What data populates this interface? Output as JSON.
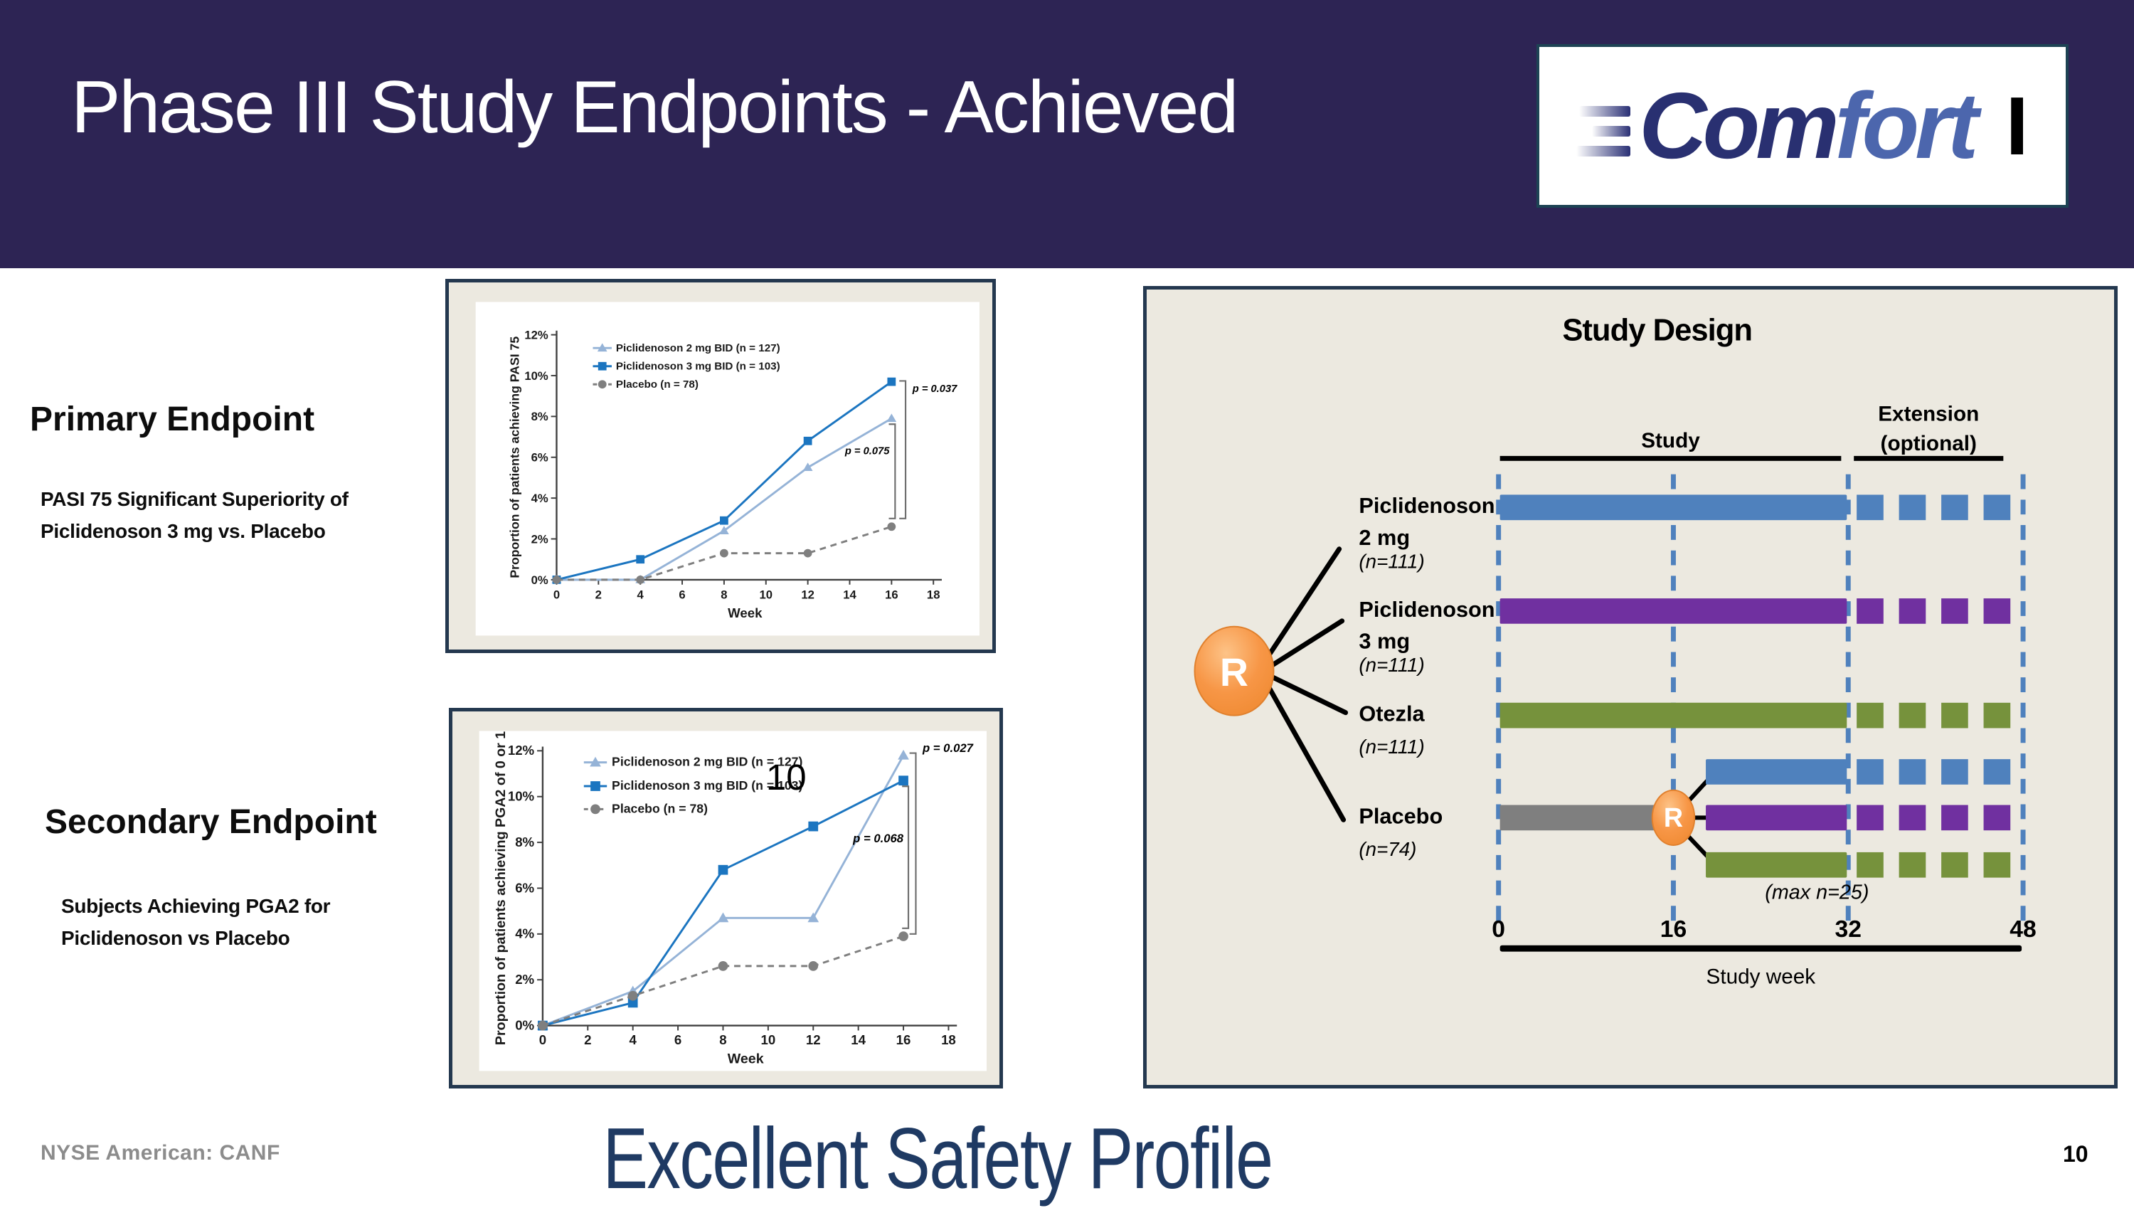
{
  "header": {
    "title": "Phase III Study Endpoints - Achieved",
    "logo": {
      "part1": "Com",
      "part2": "fort",
      "suffix": "I"
    },
    "bg_color": "#2d2454"
  },
  "sections": {
    "primary": {
      "heading": "Primary Endpoint",
      "body": "PASI 75 Significant Superiority of Piclidenoson 3 mg vs. Placebo"
    },
    "secondary": {
      "heading": "Secondary Endpoint",
      "body": "Subjects Achieving PGA2 for Piclidenoson vs Placebo"
    }
  },
  "footer": {
    "ticker": "NYSE American: CANF",
    "headline": "Excellent Safety Profile",
    "page_number": "10"
  },
  "chart_data": [
    {
      "type": "line",
      "title": "Primary Endpoint PASI 75",
      "xlabel": "Week",
      "ylabel": "Proportion of patients achieving PASI 75",
      "xlim": [
        0,
        18
      ],
      "ylim": [
        0,
        12
      ],
      "x_ticks": [
        0,
        2,
        4,
        6,
        8,
        10,
        12,
        14,
        16,
        18
      ],
      "y_ticks": [
        {
          "v": 0,
          "label": "0%"
        },
        {
          "v": 2,
          "label": "2%"
        },
        {
          "v": 4,
          "label": "4%"
        },
        {
          "v": 6,
          "label": "6%"
        },
        {
          "v": 8,
          "label": "8%"
        },
        {
          "v": 10,
          "label": "10%"
        },
        {
          "v": 12,
          "label": "12%"
        }
      ],
      "x": [
        0,
        4,
        8,
        12,
        16
      ],
      "series": [
        {
          "name": "Piclidenoson 2 mg BID (n = 127)",
          "values": [
            0,
            0,
            2.4,
            5.5,
            7.9
          ],
          "color": "#95b3d7",
          "marker": "triangle",
          "dash": false
        },
        {
          "name": "Piclidenoson 3 mg BID (n = 103)",
          "values": [
            0,
            1.0,
            2.9,
            6.8,
            9.7
          ],
          "color": "#1b75c0",
          "marker": "square",
          "dash": false
        },
        {
          "name": "Placebo (n = 78)",
          "values": [
            0,
            0,
            1.3,
            1.3,
            2.6
          ],
          "color": "#7f7f7f",
          "marker": "circle",
          "dash": true
        }
      ],
      "annotations": [
        {
          "text": "p = 0.037",
          "x": 17.0,
          "y": 9.2,
          "anchor": "start"
        },
        {
          "text": "p = 0.075",
          "x": 15.9,
          "y": 6.15,
          "anchor": "end"
        }
      ],
      "brackets": [
        {
          "x": 16.67,
          "top": 9.74,
          "bottom": 3.0
        },
        {
          "x": 16.17,
          "top": 7.62,
          "bottom": 3.0
        }
      ],
      "legend_position": "top-left",
      "grid": false
    },
    {
      "type": "line",
      "title": "Secondary Endpoint PGA2",
      "xlabel": "Week",
      "ylabel": "Proportion of patients achieving PGA2 of 0 or 1",
      "xlim": [
        0,
        18
      ],
      "ylim": [
        0,
        12
      ],
      "x_ticks": [
        0,
        2,
        4,
        6,
        8,
        10,
        12,
        14,
        16,
        18
      ],
      "y_ticks": [
        {
          "v": 0,
          "label": "0%"
        },
        {
          "v": 2,
          "label": "2%"
        },
        {
          "v": 4,
          "label": "4%"
        },
        {
          "v": 6,
          "label": "6%"
        },
        {
          "v": 8,
          "label": "8%"
        },
        {
          "v": 10,
          "label": "10%"
        },
        {
          "v": 12,
          "label": "12%"
        }
      ],
      "x": [
        0,
        4,
        8,
        12,
        16
      ],
      "series": [
        {
          "name": "Piclidenoson 2 mg BID (n = 127)",
          "values": [
            0,
            1.5,
            4.7,
            4.7,
            11.8
          ],
          "color": "#95b3d7",
          "marker": "triangle",
          "dash": false
        },
        {
          "name": "Piclidenoson 3 mg BID (n = 103)",
          "values": [
            0,
            1.0,
            6.8,
            8.7,
            10.7
          ],
          "color": "#1b75c0",
          "marker": "square",
          "dash": false
        },
        {
          "name": "Placebo (n = 78)",
          "values": [
            0,
            1.3,
            2.6,
            2.6,
            3.9
          ],
          "color": "#7f7f7f",
          "marker": "circle",
          "dash": true
        }
      ],
      "annotations": [
        {
          "text": "p = 0.027",
          "x": 16.85,
          "y": 11.95,
          "anchor": "start"
        },
        {
          "text": "p = 0.068",
          "x": 16.0,
          "y": 8.0,
          "anchor": "end"
        },
        {
          "text": "10",
          "x": 10.8,
          "y": 10.3,
          "anchor": "middle",
          "size": 52,
          "weight": 400,
          "italic": false
        }
      ],
      "brackets": [
        {
          "x": 16.55,
          "top": 11.9,
          "bottom": 4.0
        },
        {
          "x": 16.22,
          "top": 10.45,
          "bottom": 4.25
        }
      ],
      "legend_position": "top-left",
      "grid": false
    },
    {
      "type": "timeline",
      "title": "Study Design",
      "axis_label": "Study week",
      "week_ticks": [
        0,
        16,
        32,
        48
      ],
      "phases": [
        {
          "lines": [
            "Study"
          ],
          "from": 0,
          "to": 32
        },
        {
          "lines": [
            "Extension",
            "(optional)"
          ],
          "from": 32,
          "to": 48
        }
      ],
      "randomization_symbol": "R",
      "arms": [
        {
          "lines": [
            "Piclidenoson",
            "2 mg"
          ],
          "n": "(n=111)",
          "color": "#4f81bd",
          "start": 0,
          "end": 32,
          "extension_dashes": 4
        },
        {
          "lines": [
            "Piclidenoson",
            "3 mg"
          ],
          "n": "(n=111)",
          "color": "#7030a0",
          "start": 0,
          "end": 32,
          "extension_dashes": 4
        },
        {
          "lines": [
            "Otezla"
          ],
          "n": "(n=111)",
          "color": "#76923c",
          "start": 0,
          "end": 32,
          "extension_dashes": 4
        },
        {
          "lines": [
            "Placebo"
          ],
          "n": "(n=74)",
          "color": "#7f7f7f",
          "start": 0,
          "end": 16,
          "extension_dashes": 0,
          "rerandomization": {
            "symbol": "R",
            "at": 16,
            "note": "(max n=25)",
            "branch_start": 19,
            "branch_end": 32,
            "extension_dashes": 4,
            "branches": [
              {
                "color": "#4f81bd"
              },
              {
                "color": "#7030a0"
              },
              {
                "color": "#76923c"
              }
            ]
          }
        }
      ],
      "colors": {
        "dashed_guides": "#4f81bd",
        "randomization": "#f79646",
        "axis": "#000000"
      }
    }
  ]
}
